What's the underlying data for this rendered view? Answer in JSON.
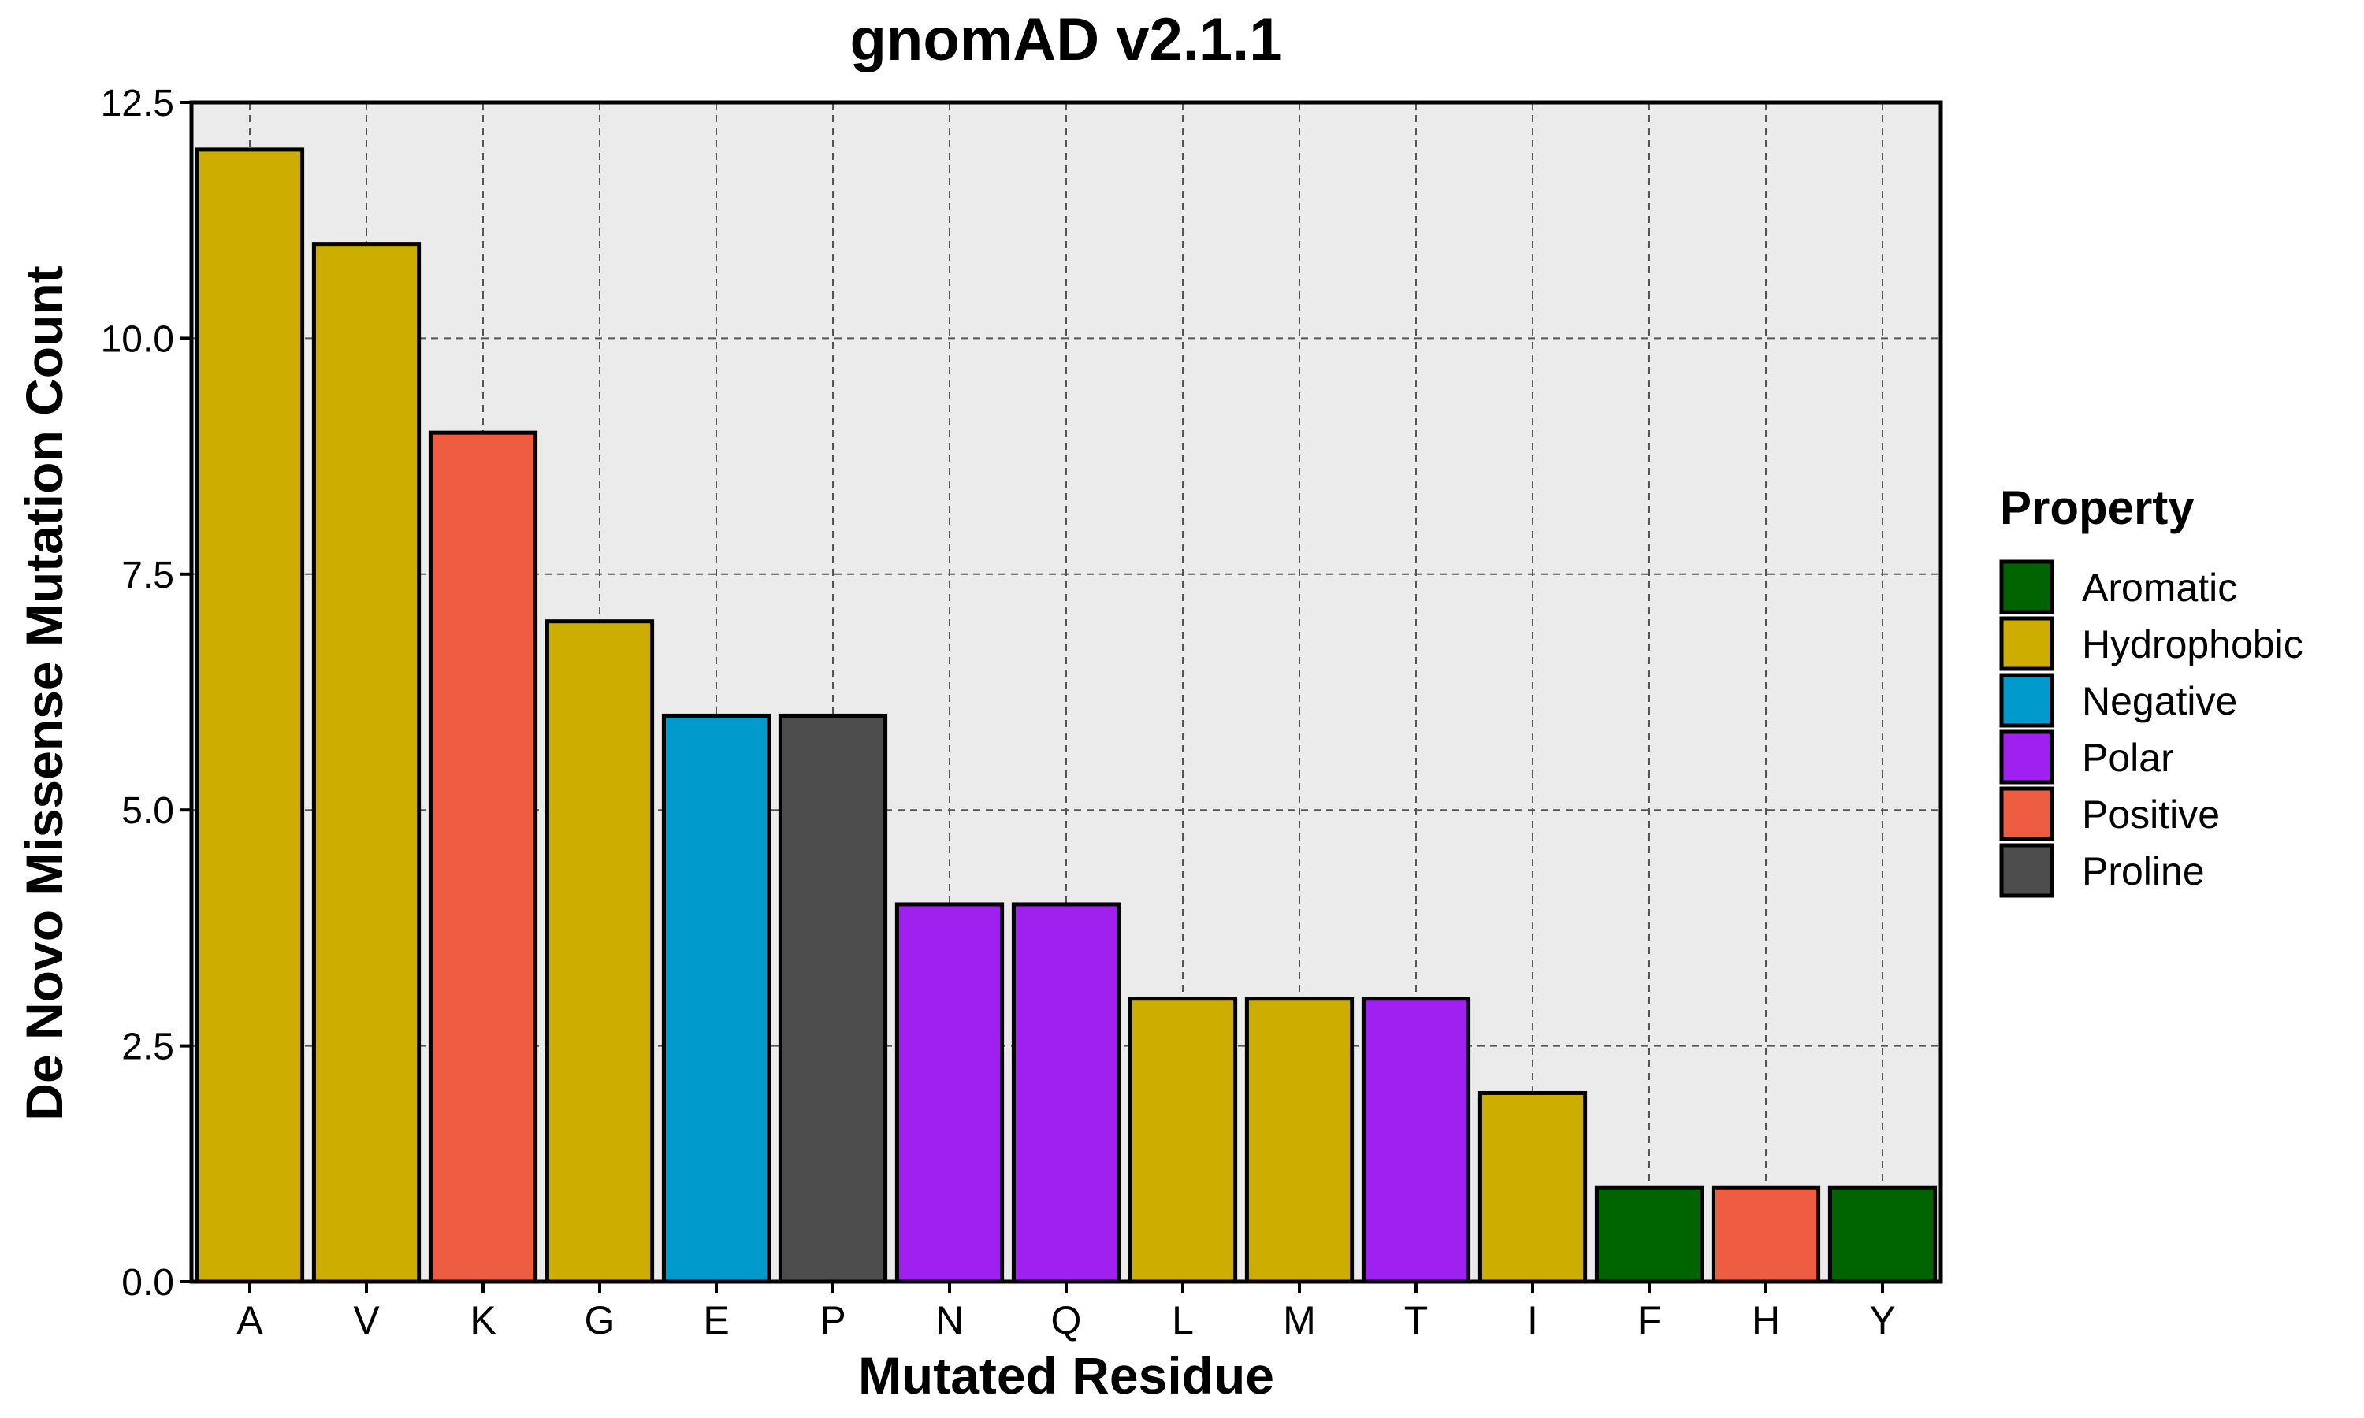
{
  "chart_data": {
    "type": "bar",
    "title": "gnomAD v2.1.1",
    "xlabel": "Mutated Residue",
    "ylabel": "De Novo Missense Mutation Count",
    "ylim": [
      0,
      12.5
    ],
    "yticks": [
      "0.0",
      "2.5",
      "5.0",
      "7.5",
      "10.0",
      "12.5"
    ],
    "grid": true,
    "categories": [
      "A",
      "V",
      "K",
      "G",
      "E",
      "P",
      "N",
      "Q",
      "L",
      "M",
      "T",
      "I",
      "F",
      "H",
      "Y"
    ],
    "values": [
      12,
      11,
      9,
      7,
      6,
      6,
      4,
      4,
      3,
      3,
      3,
      2,
      1,
      1,
      1
    ],
    "properties": [
      "Hydrophobic",
      "Hydrophobic",
      "Positive",
      "Hydrophobic",
      "Negative",
      "Proline",
      "Polar",
      "Polar",
      "Hydrophobic",
      "Hydrophobic",
      "Polar",
      "Hydrophobic",
      "Aromatic",
      "Positive",
      "Aromatic"
    ],
    "legend": {
      "title": "Property",
      "position": "right",
      "entries": [
        {
          "name": "Aromatic",
          "color": "#006400"
        },
        {
          "name": "Hydrophobic",
          "color": "#CCAD00"
        },
        {
          "name": "Negative",
          "color": "#009ACD"
        },
        {
          "name": "Polar",
          "color": "#A020F0"
        },
        {
          "name": "Positive",
          "color": "#EE5C42"
        },
        {
          "name": "Proline",
          "color": "#4D4D4D"
        }
      ]
    }
  }
}
